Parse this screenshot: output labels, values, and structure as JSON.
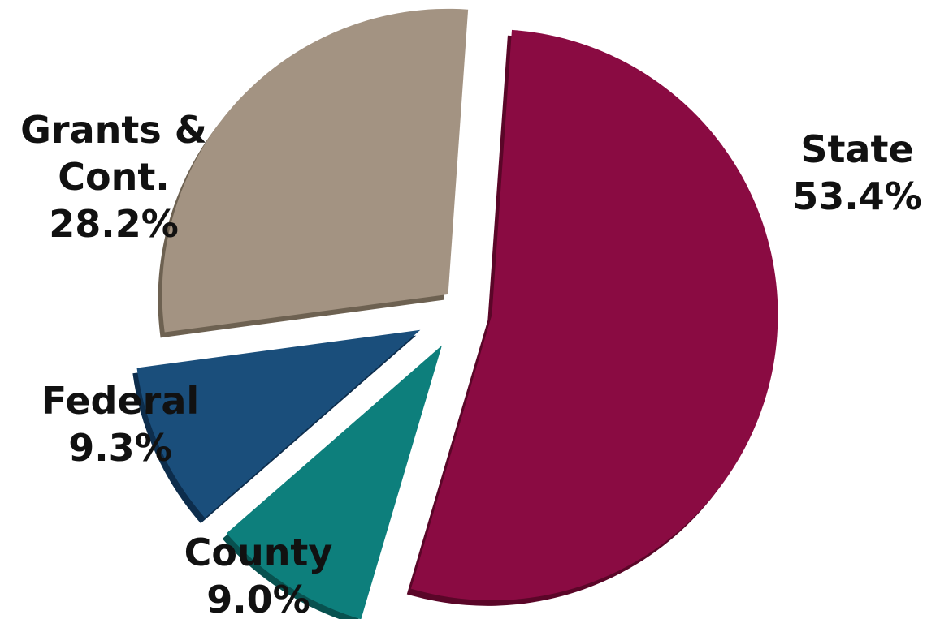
{
  "chart_data": {
    "type": "pie",
    "style": "exploded 3d",
    "title": "",
    "slices": [
      {
        "name": "State",
        "label_lines": [
          "State",
          "53.4%"
        ],
        "value": 53.4,
        "color": "#8a0b42",
        "side_color": "#5a0628"
      },
      {
        "name": "County",
        "label_lines": [
          "County",
          "9.0%"
        ],
        "value": 9.0,
        "color": "#0d7f7c",
        "side_color": "#08514f"
      },
      {
        "name": "Federal",
        "label_lines": [
          "Federal",
          "9.3%"
        ],
        "value": 9.3,
        "color": "#1a4e7b",
        "side_color": "#0d2d4c"
      },
      {
        "name": "Grants & Cont.",
        "label_lines": [
          "Grants &",
          "Cont.",
          "28.2%"
        ],
        "value": 28.2,
        "color": "#a39382",
        "side_color": "#6d6151"
      }
    ]
  }
}
